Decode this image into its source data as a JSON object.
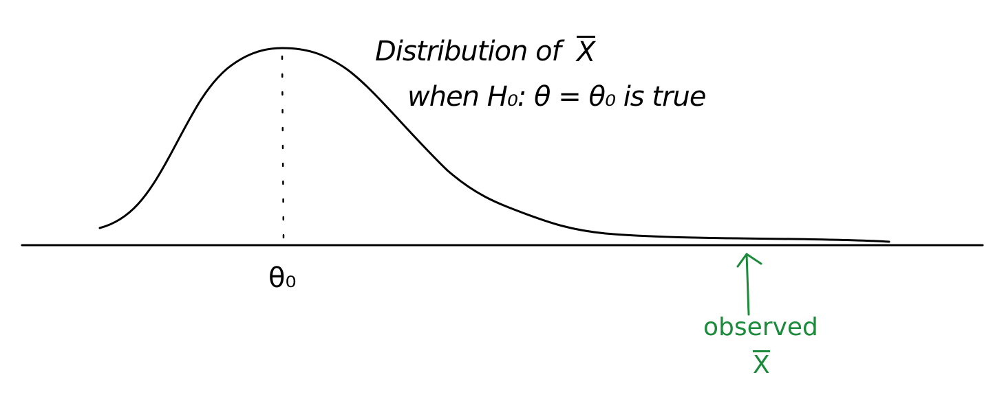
{
  "title": {
    "line1": "Distribution of",
    "xbar": "X",
    "line2": "when H₀: θ = θ₀ is true"
  },
  "axis_label": "θ₀",
  "annotation": {
    "text": "observed",
    "xbar": "X",
    "color": "#1b8a3a"
  },
  "colors": {
    "ink": "#000000",
    "annotation": "#1b8a3a"
  }
}
